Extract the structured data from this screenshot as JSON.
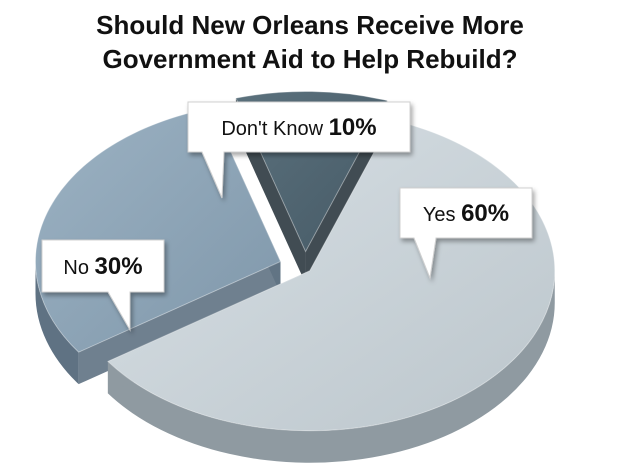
{
  "chart_data": {
    "type": "pie",
    "title_lines": [
      "Should New Orleans Receive More",
      "Government Aid to Help Rebuild?"
    ],
    "slices": [
      {
        "label": "Yes",
        "value": 60,
        "value_label": "60%",
        "color": "#c9d3d9",
        "side": "#8f9aa1"
      },
      {
        "label": "No",
        "value": 30,
        "value_label": "30%",
        "color": "#8ea5b8",
        "side": "#5f7283"
      },
      {
        "label": "Don't Know",
        "value": 10,
        "value_label": "10%",
        "color": "#4f6470",
        "side": "#2c3940"
      }
    ]
  }
}
